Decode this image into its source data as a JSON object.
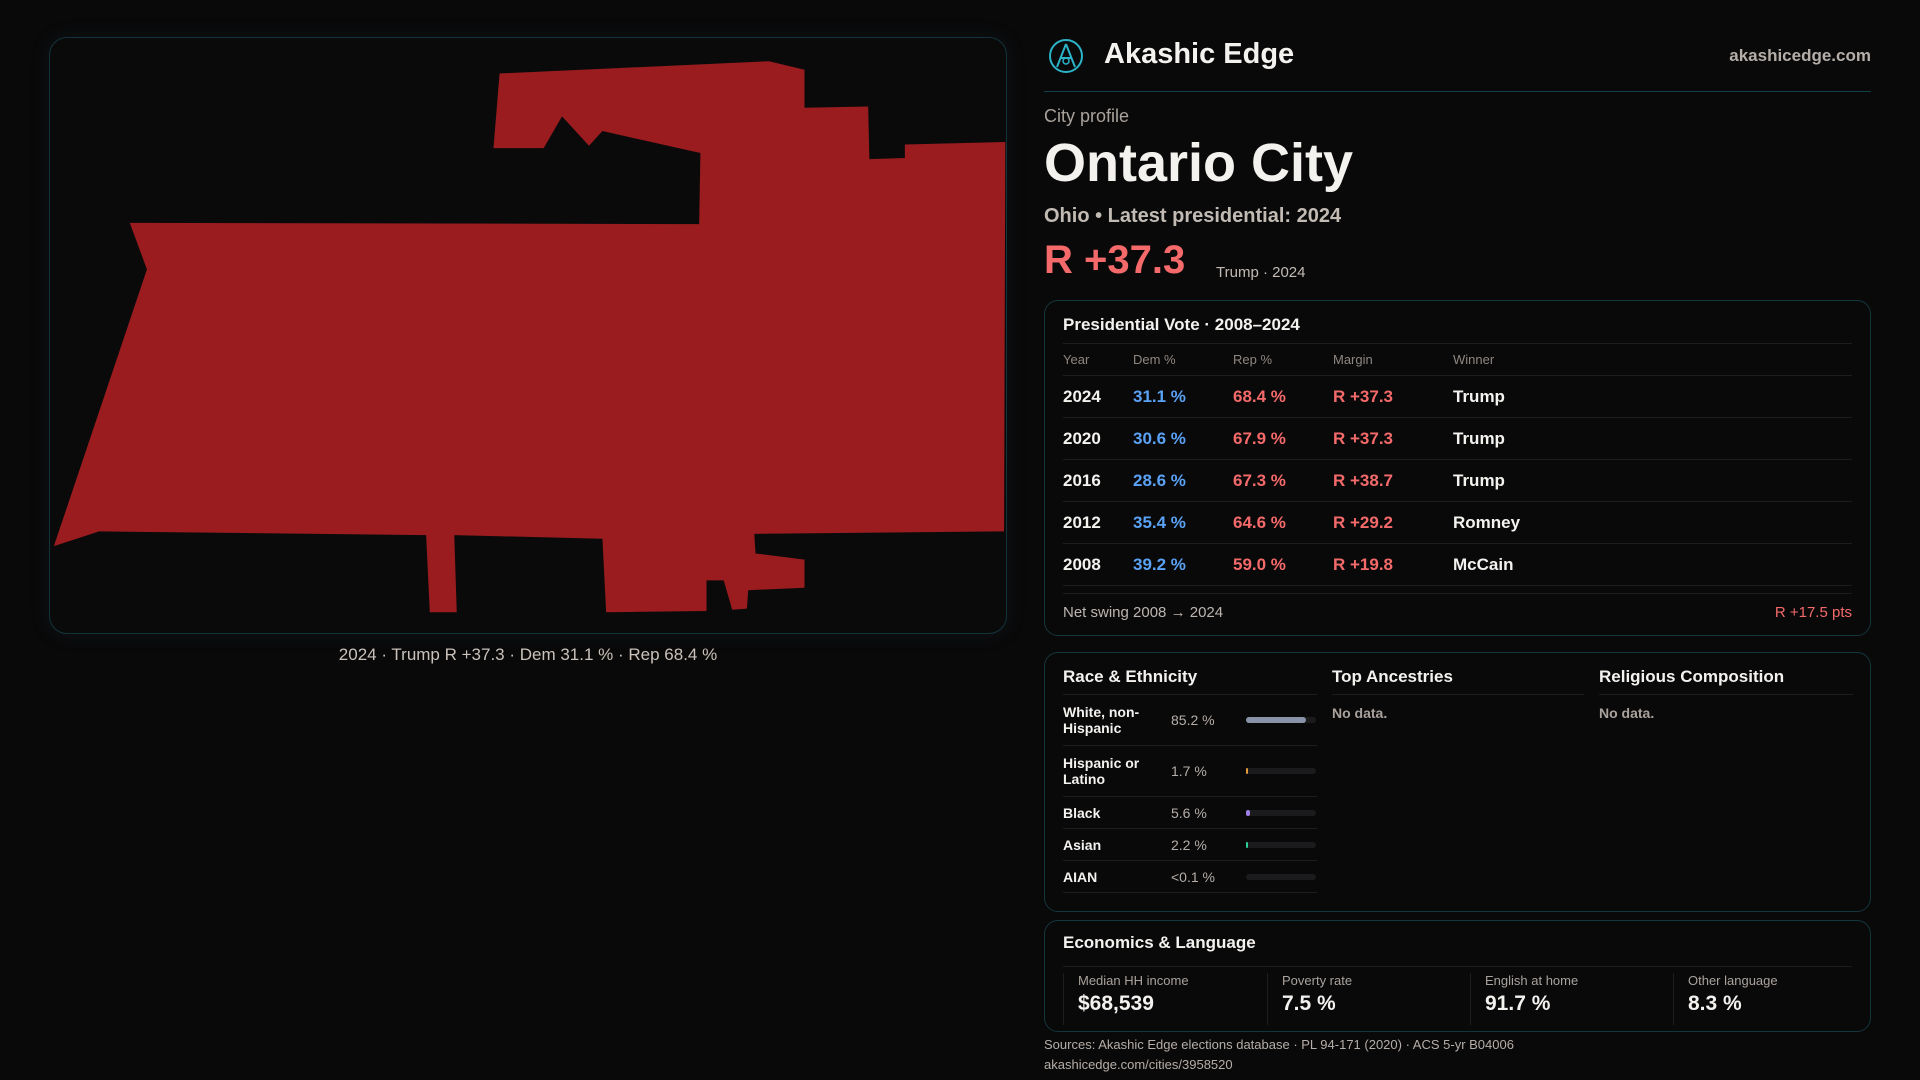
{
  "brand": {
    "name": "Akashic Edge",
    "site": "akashicedge.com",
    "logo_icon": "compass-logo-icon",
    "accent": "#2bb3c8"
  },
  "profile": {
    "kicker": "City profile",
    "city": "Ontario City",
    "subtitle": "Ohio • Latest presidential: 2024",
    "margin": "R +37.3",
    "margin_sub": "Trump · 2024",
    "rep_color": "#f46a6a",
    "dem_color": "#5aa2f5",
    "map_fill": "#9a1c1f"
  },
  "map": {
    "caption": "2024 · Trump R +37.3 · Dem 31.1 % · Rep 68.4 %"
  },
  "vote": {
    "title": "Presidential Vote · 2008–2024",
    "headers": [
      "Year",
      "Dem %",
      "Rep %",
      "Margin",
      "Winner"
    ],
    "rows": [
      {
        "year": "2024",
        "dem": "31.1 %",
        "rep": "68.4 %",
        "margin": "R +37.3",
        "winner": "Trump"
      },
      {
        "year": "2020",
        "dem": "30.6 %",
        "rep": "67.9 %",
        "margin": "R +37.3",
        "winner": "Trump"
      },
      {
        "year": "2016",
        "dem": "28.6 %",
        "rep": "67.3 %",
        "margin": "R +38.7",
        "winner": "Trump"
      },
      {
        "year": "2012",
        "dem": "35.4 %",
        "rep": "64.6 %",
        "margin": "R +29.2",
        "winner": "Romney"
      },
      {
        "year": "2008",
        "dem": "39.2 %",
        "rep": "59.0 %",
        "margin": "R +19.8",
        "winner": "McCain"
      }
    ],
    "swing_label": "Net swing 2008 → 2024",
    "swing_value": "R +17.5 pts"
  },
  "race": {
    "title": "Race & Ethnicity",
    "rows": [
      {
        "name": "White, non-Hispanic",
        "value": "85.2 %",
        "pct": 85.2,
        "color": "#8a93a8"
      },
      {
        "name": "Hispanic or Latino",
        "value": "1.7 %",
        "pct": 1.7,
        "color": "#e39a3b"
      },
      {
        "name": "Black",
        "value": "5.6 %",
        "pct": 5.6,
        "color": "#9d7fe6"
      },
      {
        "name": "Asian",
        "value": "2.2 %",
        "pct": 2.2,
        "color": "#2fcf9c"
      },
      {
        "name": "AIAN",
        "value": "<0.1 %",
        "pct": 0,
        "color": "#8a93a8"
      }
    ]
  },
  "ancestries": {
    "title": "Top Ancestries",
    "empty": "No data."
  },
  "religion": {
    "title": "Religious Composition",
    "empty": "No data."
  },
  "econ": {
    "title": "Economics & Language",
    "stats": [
      {
        "label": "Median HH income",
        "value": "$68,539"
      },
      {
        "label": "Poverty rate",
        "value": "7.5 %"
      },
      {
        "label": "English at home",
        "value": "91.7 %"
      },
      {
        "label": "Other language",
        "value": "8.3 %"
      }
    ]
  },
  "footer": {
    "sources": "Sources: Akashic Edge elections database · PL 94-171 (2020) · ACS 5-yr B04006",
    "url": "akashicedge.com/cities/3958520"
  }
}
